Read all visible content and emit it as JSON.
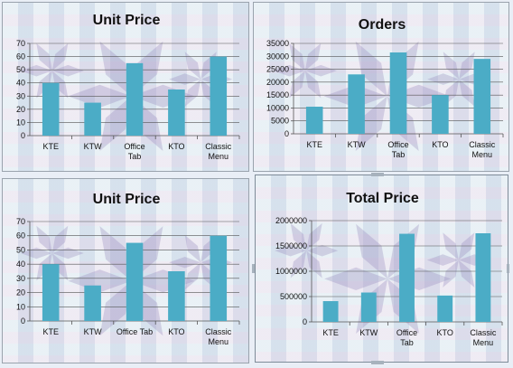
{
  "chart_data": [
    {
      "type": "bar",
      "title": "Unit Price",
      "categories": [
        "KTE",
        "KTW",
        "Office Tab",
        "KTO",
        "Classic Menu"
      ],
      "category_lines": [
        [
          "KTE"
        ],
        [
          "KTW"
        ],
        [
          "Office",
          "Tab"
        ],
        [
          "KTO"
        ],
        [
          "Classic",
          "Menu"
        ]
      ],
      "values": [
        40,
        25,
        55,
        35,
        60
      ],
      "ylim": [
        0,
        70
      ],
      "yticks": [
        0,
        10,
        20,
        30,
        40,
        50,
        60,
        70
      ],
      "grid": true,
      "bar_color": "#4bacc6"
    },
    {
      "type": "bar",
      "title": "Orders",
      "categories": [
        "KTE",
        "KTW",
        "Office Tab",
        "KTO",
        "Classic Menu"
      ],
      "category_lines": [
        [
          "KTE"
        ],
        [
          "KTW"
        ],
        [
          "Office",
          "Tab"
        ],
        [
          "KTO"
        ],
        [
          "Classic",
          "Menu"
        ]
      ],
      "values": [
        10500,
        23000,
        31500,
        15000,
        29000
      ],
      "ylim": [
        0,
        35000
      ],
      "yticks": [
        0,
        5000,
        10000,
        15000,
        20000,
        25000,
        30000,
        35000
      ],
      "grid": true,
      "bar_color": "#4bacc6"
    },
    {
      "type": "bar",
      "title": "Unit Price",
      "categories": [
        "KTE",
        "KTW",
        "Office Tab",
        "KTO",
        "Classic Menu"
      ],
      "category_lines": [
        [
          "KTE"
        ],
        [
          "KTW"
        ],
        [
          "Office Tab"
        ],
        [
          "KTO"
        ],
        [
          "Classic",
          "Menu"
        ]
      ],
      "values": [
        40,
        25,
        55,
        35,
        60
      ],
      "ylim": [
        0,
        70
      ],
      "yticks": [
        0,
        10,
        20,
        30,
        40,
        50,
        60,
        70
      ],
      "grid": true,
      "bar_color": "#4bacc6"
    },
    {
      "type": "bar",
      "title": "Total Price",
      "categories": [
        "KTE",
        "KTW",
        "Office Tab",
        "KTO",
        "Classic Menu"
      ],
      "category_lines": [
        [
          "KTE"
        ],
        [
          "KTW"
        ],
        [
          "Office",
          "Tab"
        ],
        [
          "KTO"
        ],
        [
          "Classic",
          "Menu"
        ]
      ],
      "values": [
        410000,
        580000,
        1740000,
        520000,
        1750000
      ],
      "ylim": [
        0,
        2000000
      ],
      "yticks": [
        0,
        500000,
        1000000,
        1500000,
        2000000
      ],
      "grid": true,
      "bar_color": "#4bacc6"
    }
  ]
}
